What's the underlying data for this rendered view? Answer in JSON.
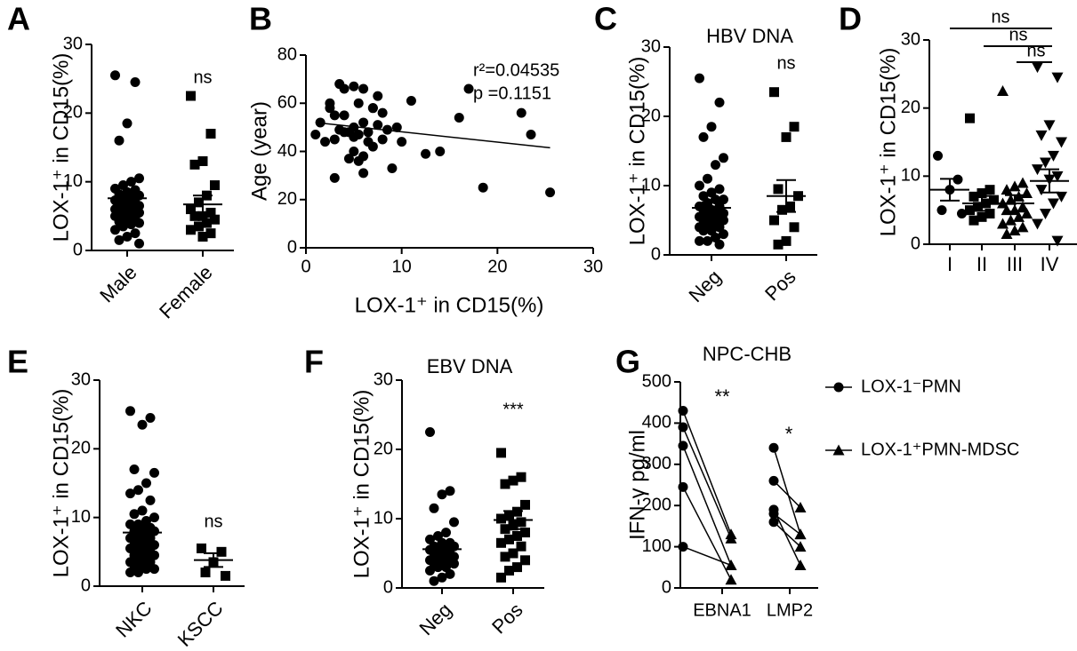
{
  "chart_data": [
    {
      "type": "dot",
      "panel": "A",
      "ylabel": "LOX-1⁺ in CD15(%)",
      "ylim": [
        0,
        30
      ],
      "yticks": [
        0,
        10,
        20,
        30
      ],
      "groups": [
        {
          "name": "Male",
          "marker": "circle",
          "mean": 7.6,
          "sem": 0.8,
          "values": [
            25.5,
            24.5,
            18.5,
            16,
            10.5,
            10,
            9.5,
            9,
            8.8,
            8.5,
            8.2,
            8,
            7.8,
            7.5,
            7.3,
            7,
            7,
            6.8,
            6.5,
            6.5,
            6.2,
            6,
            6,
            5.8,
            5.5,
            5.5,
            5.2,
            5,
            5,
            4.8,
            4.5,
            4.2,
            4,
            3.8,
            3.5,
            3,
            2.5,
            2,
            1.5,
            1
          ]
        },
        {
          "name": "Female",
          "marker": "square",
          "mean": 6.7,
          "sem": 1.3,
          "values": [
            22.5,
            17,
            13,
            12.5,
            9.5,
            8,
            7,
            6,
            5.5,
            5,
            5,
            4.5,
            4,
            3.5,
            3,
            2.5,
            2
          ]
        }
      ],
      "annotations": [
        "ns"
      ]
    },
    {
      "type": "scatter",
      "panel": "B",
      "xlabel": "LOX-1⁺ in CD15(%)",
      "ylabel": "Age (year)",
      "xlim": [
        0,
        30
      ],
      "xticks": [
        0,
        10,
        20,
        30
      ],
      "ylim": [
        0,
        80
      ],
      "yticks": [
        0,
        20,
        40,
        60,
        80
      ],
      "x": [
        1,
        1.5,
        2,
        2.5,
        3,
        3,
        3.5,
        3.5,
        4,
        4,
        4.5,
        4.5,
        5,
        5,
        5,
        5.5,
        5.5,
        5.5,
        6,
        6,
        6,
        6.5,
        6.5,
        7,
        7,
        7.5,
        7.5,
        8,
        8,
        8.5,
        9,
        9.5,
        10,
        11,
        12.5,
        14,
        16,
        17,
        18.5,
        22.5,
        23.5,
        25.5,
        3,
        4,
        5,
        6,
        2.5,
        7
      ],
      "y": [
        47,
        52,
        44,
        58,
        29,
        45,
        68,
        49,
        66,
        55,
        48,
        37,
        67,
        50,
        46,
        60,
        47,
        36,
        66,
        52,
        38,
        48,
        44,
        58,
        42,
        63,
        51,
        56,
        45,
        49,
        33,
        50,
        44,
        61,
        39,
        40,
        54,
        66,
        25,
        56,
        47,
        23,
        55,
        48,
        40,
        31,
        60,
        58
      ],
      "fit": {
        "x": [
          1,
          25.5
        ],
        "y": [
          52,
          41.5
        ]
      },
      "annotations": [
        "r²=0.04535",
        "p =0.1151"
      ]
    },
    {
      "type": "dot",
      "panel": "C",
      "title": "HBV DNA",
      "ylabel": "LOX-1⁺ in CD15(%)",
      "ylim": [
        0,
        30
      ],
      "yticks": [
        0,
        10,
        20,
        30
      ],
      "groups": [
        {
          "name": "Neg",
          "marker": "circle",
          "mean": 6.8,
          "sem": 0.8,
          "values": [
            25.5,
            22,
            18.5,
            17,
            14,
            13,
            11,
            10,
            9.5,
            9,
            8.5,
            8,
            8,
            7.5,
            7,
            7,
            6.5,
            6.5,
            6,
            6,
            6,
            5.5,
            5.5,
            5,
            5,
            5,
            4.5,
            4.5,
            4,
            4,
            3.5,
            3.5,
            3,
            2.5,
            2,
            2,
            1.5
          ]
        },
        {
          "name": "Pos",
          "marker": "square",
          "mean": 8.5,
          "sem": 2.3,
          "values": [
            23.5,
            18.5,
            17,
            9.5,
            8.5,
            7,
            6.5,
            5,
            4,
            2,
            1.5
          ]
        }
      ],
      "annotations": [
        "ns"
      ]
    },
    {
      "type": "dot",
      "panel": "D",
      "ylabel": "LOX-1⁺ in CD15(%)",
      "ylim": [
        0,
        30
      ],
      "yticks": [
        0,
        10,
        20,
        30
      ],
      "groups": [
        {
          "name": "I",
          "marker": "circle",
          "mean": 8,
          "sem": 1.6,
          "values": [
            13,
            9.5,
            8,
            5,
            4.5
          ]
        },
        {
          "name": "II",
          "marker": "square",
          "mean": 6,
          "sem": 1.1,
          "values": [
            18.5,
            8,
            7.5,
            7,
            6.5,
            6,
            5.5,
            5,
            4.5,
            4,
            3.5
          ]
        },
        {
          "name": "III",
          "marker": "triangle",
          "mean": 6,
          "sem": 1.2,
          "values": [
            22.5,
            9,
            8.5,
            8,
            7.5,
            7,
            6.5,
            6,
            5.5,
            5,
            5,
            4.5,
            4,
            3.5,
            3,
            2.5,
            2,
            1.5
          ]
        },
        {
          "name": "IV",
          "marker": "triangle-down",
          "mean": 9.3,
          "sem": 1.7,
          "values": [
            26,
            24.5,
            17.5,
            16,
            15,
            13,
            12,
            11,
            10,
            9.5,
            8,
            7,
            6,
            4.5,
            3,
            0.5
          ]
        }
      ],
      "annotations": [
        "ns",
        "ns",
        "ns"
      ]
    },
    {
      "type": "dot",
      "panel": "E",
      "ylabel": "LOX-1⁺ in CD15(%)",
      "ylim": [
        0,
        30
      ],
      "yticks": [
        0,
        10,
        20,
        30
      ],
      "groups": [
        {
          "name": "NKC",
          "marker": "circle",
          "mean": 7.8,
          "sem": 0.8,
          "values": [
            25.5,
            24.5,
            23.5,
            17,
            16.5,
            15,
            14,
            13.5,
            12.5,
            11,
            10.5,
            10,
            9.5,
            9,
            9,
            8.5,
            8.5,
            8,
            8,
            7.5,
            7.5,
            7,
            7,
            6.5,
            6.5,
            6,
            6,
            5.5,
            5.5,
            5,
            5,
            4.5,
            4.5,
            4,
            4,
            3.5,
            3.5,
            3,
            3,
            2.5,
            2.5,
            2,
            2
          ]
        },
        {
          "name": "KSCC",
          "marker": "square",
          "mean": 3.8,
          "sem": 1,
          "values": [
            5.5,
            5,
            3.5,
            2,
            1.5
          ]
        }
      ],
      "annotations": [
        "ns"
      ]
    },
    {
      "type": "dot",
      "panel": "F",
      "title": "EBV DNA",
      "ylabel": "LOX-1⁺ in CD15(%)",
      "ylim": [
        0,
        30
      ],
      "yticks": [
        0,
        10,
        20,
        30
      ],
      "groups": [
        {
          "name": "Neg",
          "marker": "circle",
          "mean": 5.6,
          "sem": 0.6,
          "values": [
            22.5,
            14,
            13.5,
            11.5,
            9.5,
            8,
            7.5,
            7,
            6.5,
            6.5,
            6,
            6,
            5.5,
            5.5,
            5.5,
            5,
            5,
            5,
            4.5,
            4.5,
            4.5,
            4,
            4,
            4,
            3.5,
            3.5,
            3,
            3,
            2.5,
            2,
            1.5,
            1
          ]
        },
        {
          "name": "Pos",
          "marker": "square",
          "mean": 9.8,
          "sem": 1.3,
          "values": [
            19.5,
            16,
            15.5,
            15,
            12,
            11,
            10.5,
            10,
            9.5,
            9,
            8.5,
            8,
            7.5,
            7,
            6.5,
            6,
            5,
            4.5,
            4,
            3,
            2.5,
            1.5
          ]
        }
      ],
      "annotations": [
        "***"
      ]
    },
    {
      "type": "paired",
      "panel": "G",
      "title": "NPC-CHB",
      "ylabel": "IFN-γ  pg/ml",
      "ylim": [
        0,
        500
      ],
      "yticks": [
        0,
        100,
        200,
        300,
        400,
        500
      ],
      "categories": [
        "EBNA1",
        "LMP2"
      ],
      "series": [
        {
          "name": "LOX-1⁻PMN",
          "marker": "circle",
          "values": [
            [
              430,
              390,
              345,
              245,
              100
            ],
            [
              340,
              260,
              190,
              180,
              160
            ]
          ]
        },
        {
          "name": "LOX-1⁺PMN-MDSC",
          "marker": "triangle",
          "values": [
            [
              130,
              120,
              55,
              20,
              55
            ],
            [
              130,
              195,
              55,
              130,
              100
            ]
          ]
        }
      ],
      "annotations": [
        "**",
        "*"
      ]
    }
  ]
}
